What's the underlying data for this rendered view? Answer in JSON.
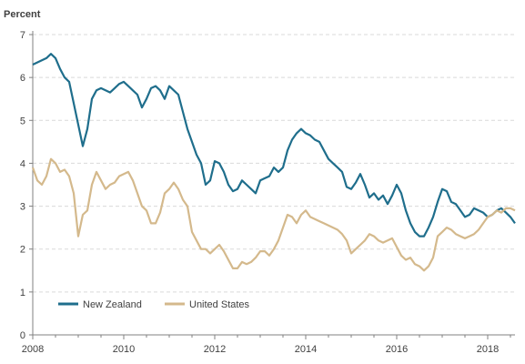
{
  "chart_data": {
    "type": "line",
    "title": "",
    "ylabel": "Percent",
    "xlabel": "",
    "xlim": [
      2008,
      2018.6
    ],
    "ylim": [
      0,
      7
    ],
    "yticks": [
      0,
      1,
      2,
      3,
      4,
      5,
      6,
      7
    ],
    "xticks": [
      2008,
      2010,
      2012,
      2014,
      2016,
      2018
    ],
    "grid": true,
    "legend_position": "bottom-left",
    "series": [
      {
        "name": "New Zealand",
        "color": "#1f6e8c",
        "x": [
          2008.0,
          2008.1,
          2008.2,
          2008.3,
          2008.4,
          2008.5,
          2008.6,
          2008.7,
          2008.8,
          2008.9,
          2009.0,
          2009.1,
          2009.2,
          2009.3,
          2009.4,
          2009.5,
          2009.6,
          2009.7,
          2009.8,
          2009.9,
          2010.0,
          2010.1,
          2010.2,
          2010.3,
          2010.4,
          2010.5,
          2010.6,
          2010.7,
          2010.8,
          2010.9,
          2011.0,
          2011.1,
          2011.2,
          2011.3,
          2011.4,
          2011.5,
          2011.6,
          2011.7,
          2011.8,
          2011.9,
          2012.0,
          2012.1,
          2012.2,
          2012.3,
          2012.4,
          2012.5,
          2012.6,
          2012.7,
          2012.8,
          2012.9,
          2013.0,
          2013.1,
          2013.2,
          2013.3,
          2013.4,
          2013.5,
          2013.6,
          2013.7,
          2013.8,
          2013.9,
          2014.0,
          2014.1,
          2014.2,
          2014.3,
          2014.4,
          2014.5,
          2014.6,
          2014.7,
          2014.8,
          2014.9,
          2015.0,
          2015.1,
          2015.2,
          2015.3,
          2015.4,
          2015.5,
          2015.6,
          2015.7,
          2015.8,
          2015.9,
          2016.0,
          2016.1,
          2016.2,
          2016.3,
          2016.4,
          2016.5,
          2016.6,
          2016.7,
          2016.8,
          2016.9,
          2017.0,
          2017.1,
          2017.2,
          2017.3,
          2017.4,
          2017.5,
          2017.6,
          2017.7,
          2017.8,
          2017.9,
          2018.0,
          2018.1,
          2018.2,
          2018.3,
          2018.4,
          2018.5,
          2018.6
        ],
        "values": [
          6.3,
          6.35,
          6.4,
          6.45,
          6.55,
          6.45,
          6.2,
          6.0,
          5.9,
          5.4,
          4.9,
          4.4,
          4.8,
          5.5,
          5.7,
          5.75,
          5.7,
          5.65,
          5.75,
          5.85,
          5.9,
          5.8,
          5.7,
          5.6,
          5.3,
          5.5,
          5.75,
          5.8,
          5.7,
          5.5,
          5.8,
          5.7,
          5.6,
          5.2,
          4.8,
          4.5,
          4.2,
          4.0,
          3.5,
          3.6,
          4.05,
          4.0,
          3.8,
          3.5,
          3.35,
          3.4,
          3.6,
          3.5,
          3.4,
          3.3,
          3.6,
          3.65,
          3.7,
          3.9,
          3.8,
          3.9,
          4.3,
          4.55,
          4.7,
          4.8,
          4.7,
          4.65,
          4.55,
          4.5,
          4.3,
          4.1,
          4.0,
          3.9,
          3.8,
          3.45,
          3.4,
          3.55,
          3.75,
          3.5,
          3.2,
          3.3,
          3.15,
          3.25,
          3.05,
          3.25,
          3.5,
          3.3,
          2.9,
          2.6,
          2.4,
          2.3,
          2.3,
          2.5,
          2.75,
          3.1,
          3.4,
          3.35,
          3.1,
          3.05,
          2.9,
          2.75,
          2.8,
          2.95,
          2.9,
          2.85,
          2.75,
          2.8,
          2.9,
          2.95,
          2.85,
          2.75,
          2.6
        ]
      },
      {
        "name": "United States",
        "color": "#d4b98c",
        "x": [
          2008.0,
          2008.1,
          2008.2,
          2008.3,
          2008.4,
          2008.5,
          2008.6,
          2008.7,
          2008.8,
          2008.9,
          2009.0,
          2009.1,
          2009.2,
          2009.3,
          2009.4,
          2009.5,
          2009.6,
          2009.7,
          2009.8,
          2009.9,
          2010.0,
          2010.1,
          2010.2,
          2010.3,
          2010.4,
          2010.5,
          2010.6,
          2010.7,
          2010.8,
          2010.9,
          2011.0,
          2011.1,
          2011.2,
          2011.3,
          2011.4,
          2011.5,
          2011.6,
          2011.7,
          2011.8,
          2011.9,
          2012.0,
          2012.1,
          2012.2,
          2012.3,
          2012.4,
          2012.5,
          2012.6,
          2012.7,
          2012.8,
          2012.9,
          2013.0,
          2013.1,
          2013.2,
          2013.3,
          2013.4,
          2013.5,
          2013.6,
          2013.7,
          2013.8,
          2013.9,
          2014.0,
          2014.1,
          2014.2,
          2014.3,
          2014.4,
          2014.5,
          2014.6,
          2014.7,
          2014.8,
          2014.9,
          2015.0,
          2015.1,
          2015.2,
          2015.3,
          2015.4,
          2015.5,
          2015.6,
          2015.7,
          2015.8,
          2015.9,
          2016.0,
          2016.1,
          2016.2,
          2016.3,
          2016.4,
          2016.5,
          2016.6,
          2016.7,
          2016.8,
          2016.9,
          2017.0,
          2017.1,
          2017.2,
          2017.3,
          2017.4,
          2017.5,
          2017.6,
          2017.7,
          2017.8,
          2017.9,
          2018.0,
          2018.1,
          2018.2,
          2018.3,
          2018.4,
          2018.5,
          2018.6
        ],
        "values": [
          3.9,
          3.6,
          3.5,
          3.7,
          4.1,
          4.0,
          3.8,
          3.85,
          3.7,
          3.3,
          2.3,
          2.8,
          2.9,
          3.5,
          3.8,
          3.6,
          3.4,
          3.5,
          3.55,
          3.7,
          3.75,
          3.8,
          3.6,
          3.3,
          3.0,
          2.9,
          2.6,
          2.6,
          2.85,
          3.3,
          3.4,
          3.55,
          3.4,
          3.15,
          3.0,
          2.4,
          2.2,
          2.0,
          2.0,
          1.9,
          2.0,
          2.1,
          1.95,
          1.75,
          1.55,
          1.55,
          1.7,
          1.65,
          1.7,
          1.8,
          1.95,
          1.95,
          1.85,
          2.0,
          2.2,
          2.5,
          2.8,
          2.75,
          2.6,
          2.8,
          2.9,
          2.75,
          2.7,
          2.65,
          2.6,
          2.55,
          2.5,
          2.45,
          2.35,
          2.2,
          1.9,
          2.0,
          2.1,
          2.2,
          2.35,
          2.3,
          2.2,
          2.15,
          2.2,
          2.25,
          2.05,
          1.85,
          1.75,
          1.8,
          1.65,
          1.6,
          1.5,
          1.6,
          1.8,
          2.3,
          2.4,
          2.5,
          2.45,
          2.35,
          2.3,
          2.25,
          2.3,
          2.35,
          2.45,
          2.6,
          2.75,
          2.8,
          2.9,
          2.85,
          2.95,
          2.95,
          2.9
        ]
      }
    ]
  }
}
